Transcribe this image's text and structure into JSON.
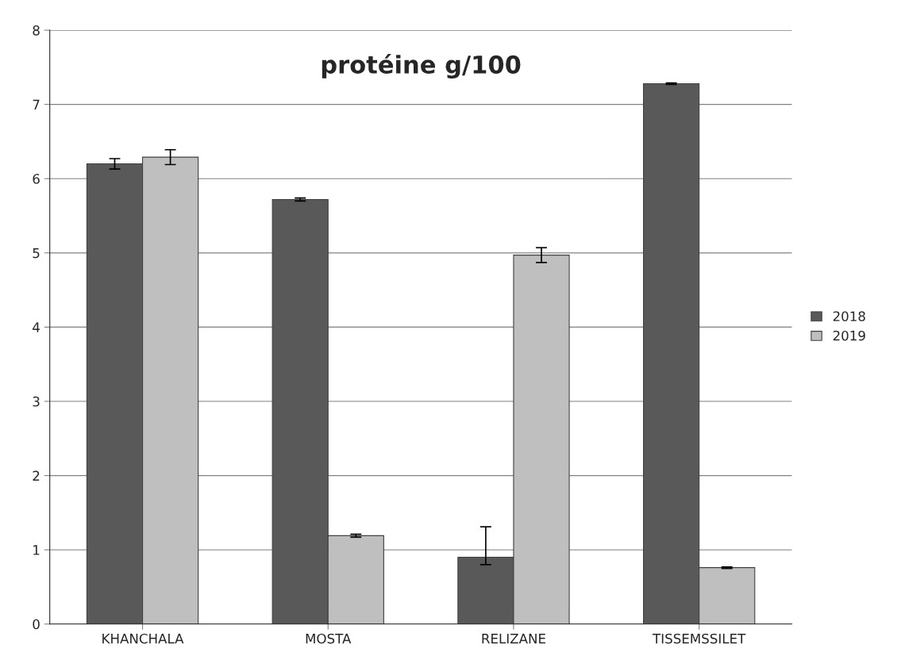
{
  "chart_data": {
    "type": "bar",
    "title": "protéine g/100",
    "categories": [
      "KHANCHALA",
      "MOSTA",
      "RELIZANE",
      "TISSEMSSILET"
    ],
    "series": [
      {
        "name": "2018",
        "color": "#595959",
        "values": [
          6.2,
          5.72,
          0.9,
          7.28
        ],
        "errors": [
          0.07,
          0.02,
          [
            0.8,
            1.31
          ],
          0.01
        ]
      },
      {
        "name": "2019",
        "color": "#bfbfbf",
        "values": [
          6.29,
          1.19,
          4.97,
          0.76
        ],
        "errors": [
          0.1,
          0.02,
          0.1,
          0.01
        ]
      }
    ],
    "ylim": [
      0,
      8
    ],
    "yticks": [
      0,
      1,
      2,
      3,
      4,
      5,
      6,
      7,
      8
    ],
    "grid": "y",
    "legend": "right"
  }
}
